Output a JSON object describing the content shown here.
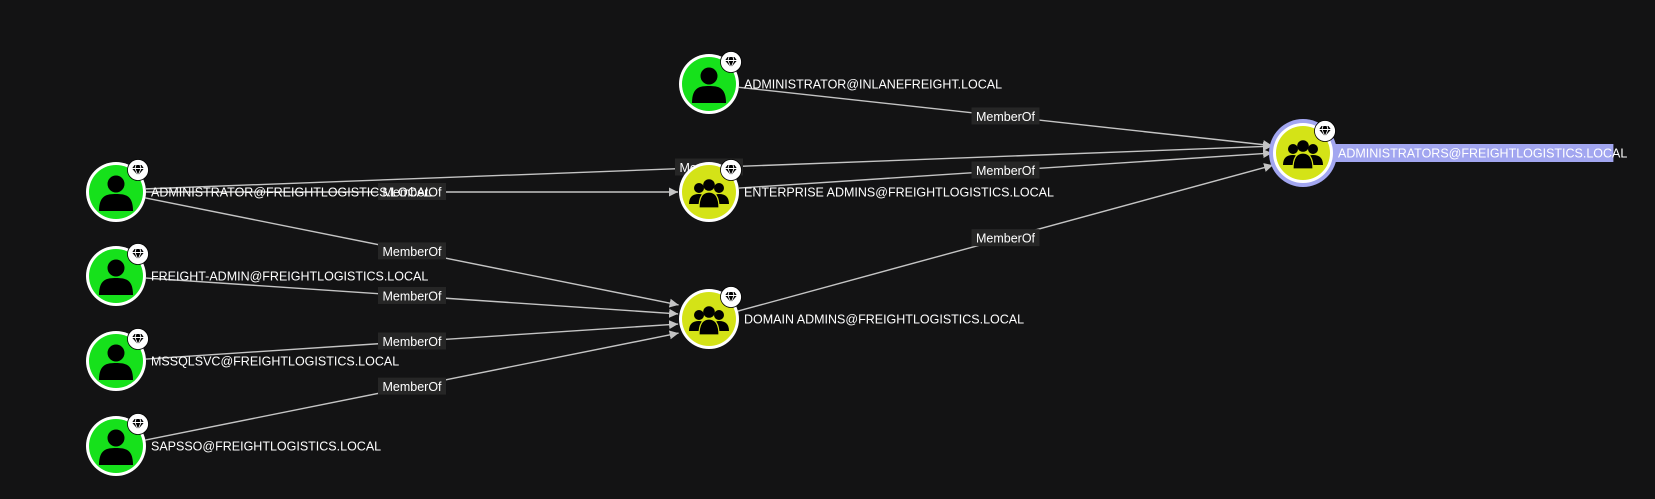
{
  "colors": {
    "background": "#131314",
    "user_fill": "#16e11b",
    "group_fill": "#d4e317",
    "node_border": "#ffffff",
    "edge": "#c4c4c4",
    "edge_label_bg": "#262626",
    "selected_halo": "#a2a6f0",
    "selected_label_bg": "#a2a6f0",
    "selected_label_text": "#1b1b2b"
  },
  "nodes": [
    {
      "id": "admin_inlane",
      "kind": "user",
      "label": "ADMINISTRATOR@INLANEFREIGHT.LOCAL",
      "icon": "user-icon",
      "badge": "tier-zero-gem-icon"
    },
    {
      "id": "enterprise_admins",
      "kind": "group",
      "label": "ENTERPRISE ADMINS@FREIGHTLOGISTICS.LOCAL",
      "icon": "group-icon",
      "badge": "tier-zero-gem-icon"
    },
    {
      "id": "domain_admins",
      "kind": "group",
      "label": "DOMAIN ADMINS@FREIGHTLOGISTICS.LOCAL",
      "icon": "group-icon",
      "badge": "tier-zero-gem-icon"
    },
    {
      "id": "administrators",
      "kind": "group",
      "label": "ADMINISTRATORS@FREIGHTLOGISTICS.LOCAL",
      "icon": "group-icon",
      "badge": "tier-zero-gem-icon",
      "selected": true
    },
    {
      "id": "admin_freight",
      "kind": "user",
      "label": "ADMINISTRATOR@FREIGHTLOGISTICS.LOCAL",
      "icon": "user-icon",
      "badge": "tier-zero-gem-icon"
    },
    {
      "id": "freight_admin",
      "kind": "user",
      "label": "FREIGHT-ADMIN@FREIGHTLOGISTICS.LOCAL",
      "icon": "user-icon",
      "badge": "tier-zero-gem-icon"
    },
    {
      "id": "mssqlsvc",
      "kind": "user",
      "label": "MSSQLSVC@FREIGHTLOGISTICS.LOCAL",
      "icon": "user-icon",
      "badge": "tier-zero-gem-icon"
    },
    {
      "id": "sapsso",
      "kind": "user",
      "label": "SAPSSO@FREIGHTLOGISTICS.LOCAL",
      "icon": "user-icon",
      "badge": "tier-zero-gem-icon"
    }
  ],
  "edges": [
    {
      "from": "admin_inlane",
      "to": "administrators",
      "label": "MemberOf"
    },
    {
      "from": "admin_freight",
      "to": "enterprise_admins",
      "label": "MemberOf"
    },
    {
      "from": "admin_freight",
      "to": "administrators",
      "label": "MemberOf"
    },
    {
      "from": "enterprise_admins",
      "to": "administrators",
      "label": "MemberOf"
    },
    {
      "from": "domain_admins",
      "to": "administrators",
      "label": "MemberOf"
    },
    {
      "from": "admin_freight",
      "to": "domain_admins",
      "label": "MemberOf"
    },
    {
      "from": "freight_admin",
      "to": "domain_admins",
      "label": "MemberOf"
    },
    {
      "from": "mssqlsvc",
      "to": "domain_admins",
      "label": "MemberOf"
    },
    {
      "from": "sapsso",
      "to": "domain_admins",
      "label": "MemberOf"
    }
  ]
}
